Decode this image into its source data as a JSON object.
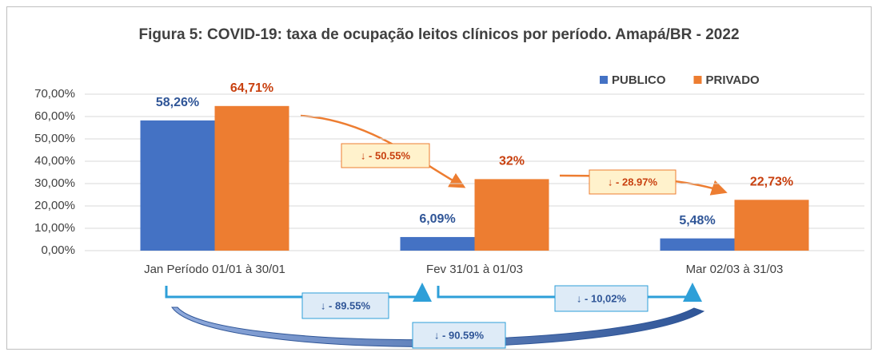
{
  "chart_data": {
    "type": "bar",
    "title": "Figura 5: COVID-19: taxa de ocupação  leitos clínicos por período. Amapá/BR - 2022",
    "categories": [
      "Jan Período 01/01 à 30/01",
      "Fev 31/01 à 01/03",
      "Mar 02/03 à 31/03"
    ],
    "series": [
      {
        "name": "PUBLICO",
        "color": "#4472c4",
        "label_color": "#2f5597",
        "values": [
          58.26,
          6.09,
          5.48
        ],
        "value_labels": [
          "58,26%",
          "6,09%",
          "5,48%"
        ]
      },
      {
        "name": "PRIVADO",
        "color": "#ed7d31",
        "label_color": "#c8400f",
        "values": [
          64.71,
          32,
          22.73
        ],
        "value_labels": [
          "64,71%",
          "32%",
          "22,73%"
        ]
      }
    ],
    "ylim": [
      0,
      70
    ],
    "yticks": [
      {
        "value": 0,
        "label": "0,00%"
      },
      {
        "value": 10,
        "label": "10,00%"
      },
      {
        "value": 20,
        "label": "20,00%"
      },
      {
        "value": 30,
        "label": "30,00%"
      },
      {
        "value": 40,
        "label": "40,00%"
      },
      {
        "value": 50,
        "label": "50,00%"
      },
      {
        "value": 60,
        "label": "60,00%"
      },
      {
        "value": 70,
        "label": "70,00%"
      }
    ],
    "grid": true,
    "legend": "top-right",
    "annotations": [
      "↓ - 50.55%",
      "↓ - 28.97%",
      "↓ - 89.55%",
      "↓ - 10,02%",
      "↓ - 90.59%"
    ]
  }
}
